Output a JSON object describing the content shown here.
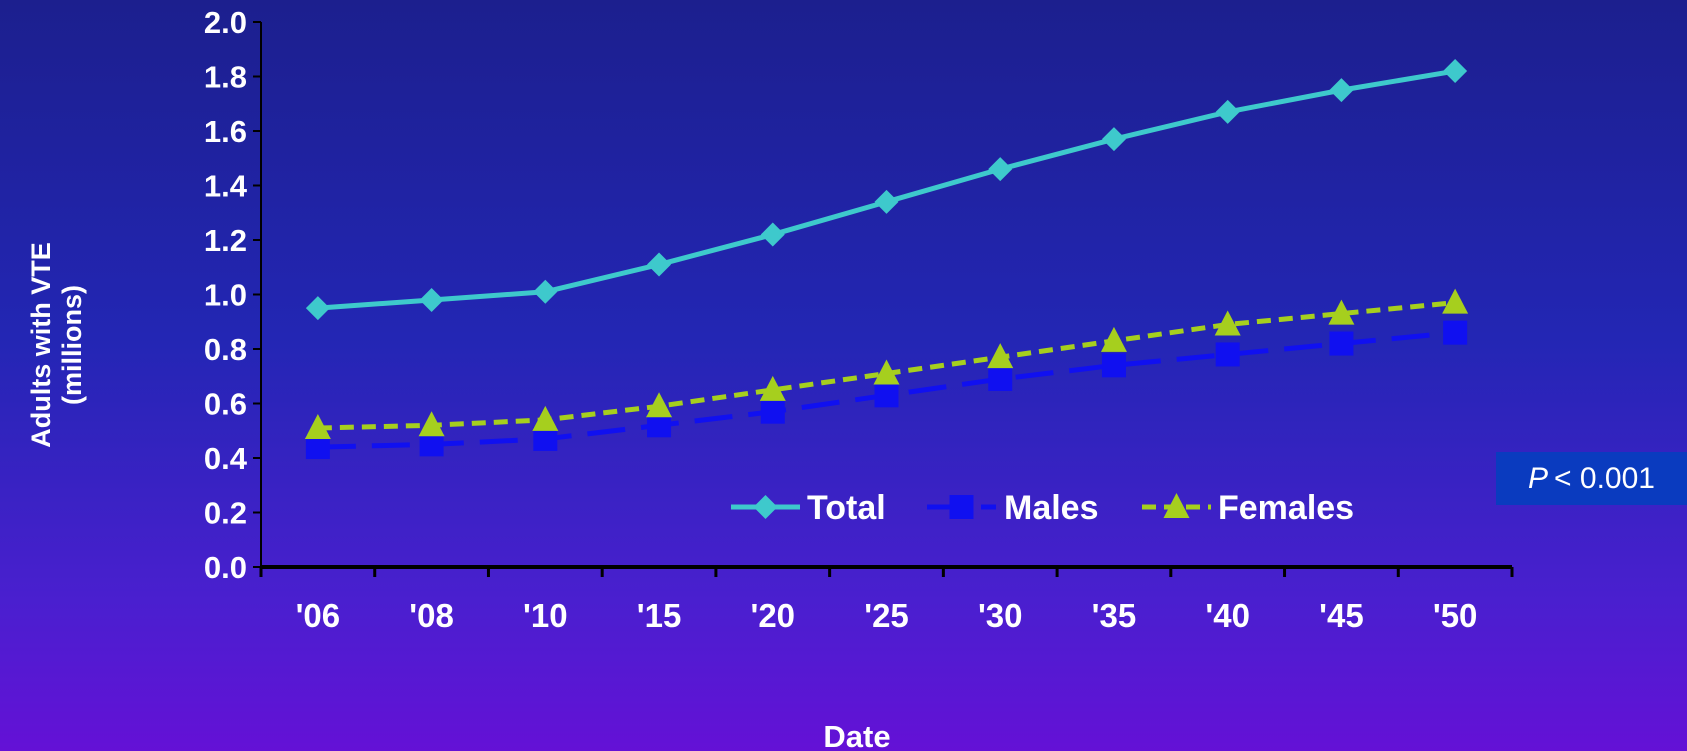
{
  "chart_data": {
    "type": "line",
    "title": "",
    "xlabel": "Date",
    "ylabel": [
      "Adults with VTE",
      "(millions)"
    ],
    "categories": [
      "'06",
      "'08",
      "'10",
      "'15",
      "'20",
      "'25",
      "'30",
      "'35",
      "'40",
      "'45",
      "'50"
    ],
    "ylim": [
      0,
      2.0
    ],
    "yticks": [
      "0.0",
      "0.2",
      "0.4",
      "0.6",
      "0.8",
      "1.0",
      "1.2",
      "1.4",
      "1.6",
      "1.8",
      "2.0"
    ],
    "legend_position": "bottom-center inside plot",
    "series": [
      {
        "name": "Total",
        "color": "#3ec9cc",
        "marker": "diamond",
        "dash": "solid",
        "values": [
          0.95,
          0.98,
          1.01,
          1.11,
          1.22,
          1.34,
          1.46,
          1.57,
          1.67,
          1.75,
          1.82
        ]
      },
      {
        "name": "Males",
        "color": "#1010f0",
        "marker": "square",
        "dash": "longdash",
        "values": [
          0.44,
          0.45,
          0.47,
          0.52,
          0.57,
          0.63,
          0.69,
          0.74,
          0.78,
          0.82,
          0.86
        ]
      },
      {
        "name": "Females",
        "color": "#a6cf1e",
        "marker": "triangle",
        "dash": "shortdash",
        "values": [
          0.51,
          0.52,
          0.54,
          0.59,
          0.65,
          0.71,
          0.77,
          0.83,
          0.89,
          0.93,
          0.97
        ]
      }
    ]
  },
  "annotation": {
    "p_symbol": "P",
    "p_text": "< 0.001"
  }
}
